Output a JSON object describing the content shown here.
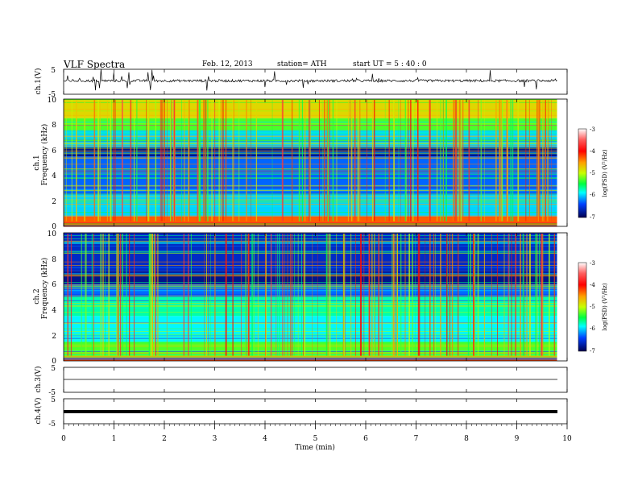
{
  "header": {
    "title": "VLF  Spectra",
    "date": "Feb. 12, 2013",
    "station": "station= ATH",
    "start": "start  UT  =  5  : 40 : 0"
  },
  "chart_data": {
    "type": "heatmap",
    "xlabel": "Time  (min)",
    "xlim": [
      0,
      10
    ],
    "x_ticks": [
      "0",
      "1",
      "2",
      "3",
      "4",
      "5",
      "6",
      "7",
      "8",
      "9",
      "10"
    ],
    "data_end_min": 9.8,
    "panels": [
      {
        "id": "ch1_waveform",
        "type": "line",
        "ylabel": "ch.1(V)",
        "ylim": [
          -5,
          5
        ],
        "y_ticks": [
          "-5",
          "5"
        ],
        "description_values": {
          "baseline_V": 0.4,
          "typical_amplitude_V": 1.0,
          "peak_spikes_V": 4.5
        }
      },
      {
        "id": "ch1_spectrogram",
        "type": "heatmap",
        "ylabel_top": "ch.1",
        "ylabel": "Frequency  (kHz)",
        "ylim": [
          0,
          10
        ],
        "y_ticks": [
          "0",
          "2",
          "4",
          "6",
          "8",
          "10"
        ],
        "colorbar": {
          "label": "log(PSD) (V²/Hz)",
          "range": [
            -7,
            -3
          ],
          "ticks": [
            "-3",
            "-4",
            "-5",
            "-6",
            "-7"
          ]
        },
        "bands": [
          {
            "from_kHz": 0,
            "to_kHz": 0.3,
            "logPSD": -4.0
          },
          {
            "from_kHz": 0.3,
            "to_kHz": 0.8,
            "logPSD": -4.3
          },
          {
            "from_kHz": 0.8,
            "to_kHz": 2.5,
            "logPSD": -6.0
          },
          {
            "from_kHz": 2.5,
            "to_kHz": 5.5,
            "logPSD": -6.3
          },
          {
            "from_kHz": 5.5,
            "to_kHz": 6.2,
            "logPSD": -6.8
          },
          {
            "from_kHz": 6.2,
            "to_kHz": 7.5,
            "logPSD": -6.0
          },
          {
            "from_kHz": 7.5,
            "to_kHz": 8.5,
            "logPSD": -5.3
          },
          {
            "from_kHz": 8.5,
            "to_kHz": 10,
            "logPSD": -4.8
          }
        ]
      },
      {
        "id": "ch2_spectrogram",
        "type": "heatmap",
        "ylabel_top": "ch.2",
        "ylabel": "Frequency  (kHz)",
        "ylim": [
          0,
          10
        ],
        "y_ticks": [
          "0",
          "2",
          "4",
          "6",
          "8",
          "10"
        ],
        "colorbar": {
          "label": "log(PSD) (V²/Hz)",
          "range": [
            -7,
            -3
          ],
          "ticks": [
            "-3",
            "-4",
            "-5",
            "-6",
            "-7"
          ]
        },
        "bands": [
          {
            "from_kHz": 0,
            "to_kHz": 0.3,
            "logPSD": -4.2
          },
          {
            "from_kHz": 0.3,
            "to_kHz": 1.5,
            "logPSD": -5.3
          },
          {
            "from_kHz": 1.5,
            "to_kHz": 3.5,
            "logPSD": -5.9
          },
          {
            "from_kHz": 3.5,
            "to_kHz": 5.0,
            "logPSD": -5.7
          },
          {
            "from_kHz": 5.0,
            "to_kHz": 6.0,
            "logPSD": -6.3
          },
          {
            "from_kHz": 6.0,
            "to_kHz": 7.0,
            "logPSD": -6.8
          },
          {
            "from_kHz": 7.0,
            "to_kHz": 10,
            "logPSD": -6.6
          }
        ]
      },
      {
        "id": "ch3_waveform",
        "type": "line",
        "ylabel": "ch.3(V)",
        "ylim": [
          -5,
          5
        ],
        "y_ticks": [
          "-5",
          "5"
        ],
        "description_values": {
          "baseline_V": 0.0,
          "typical_amplitude_V": 0.05
        }
      },
      {
        "id": "ch4_waveform",
        "type": "line",
        "ylabel": "ch.4(V)",
        "ylim": [
          -5,
          5
        ],
        "y_ticks": [
          "-5",
          "5"
        ],
        "description_values": {
          "baseline_V": 0.0,
          "typical_amplitude_V": 0.5
        }
      }
    ]
  }
}
